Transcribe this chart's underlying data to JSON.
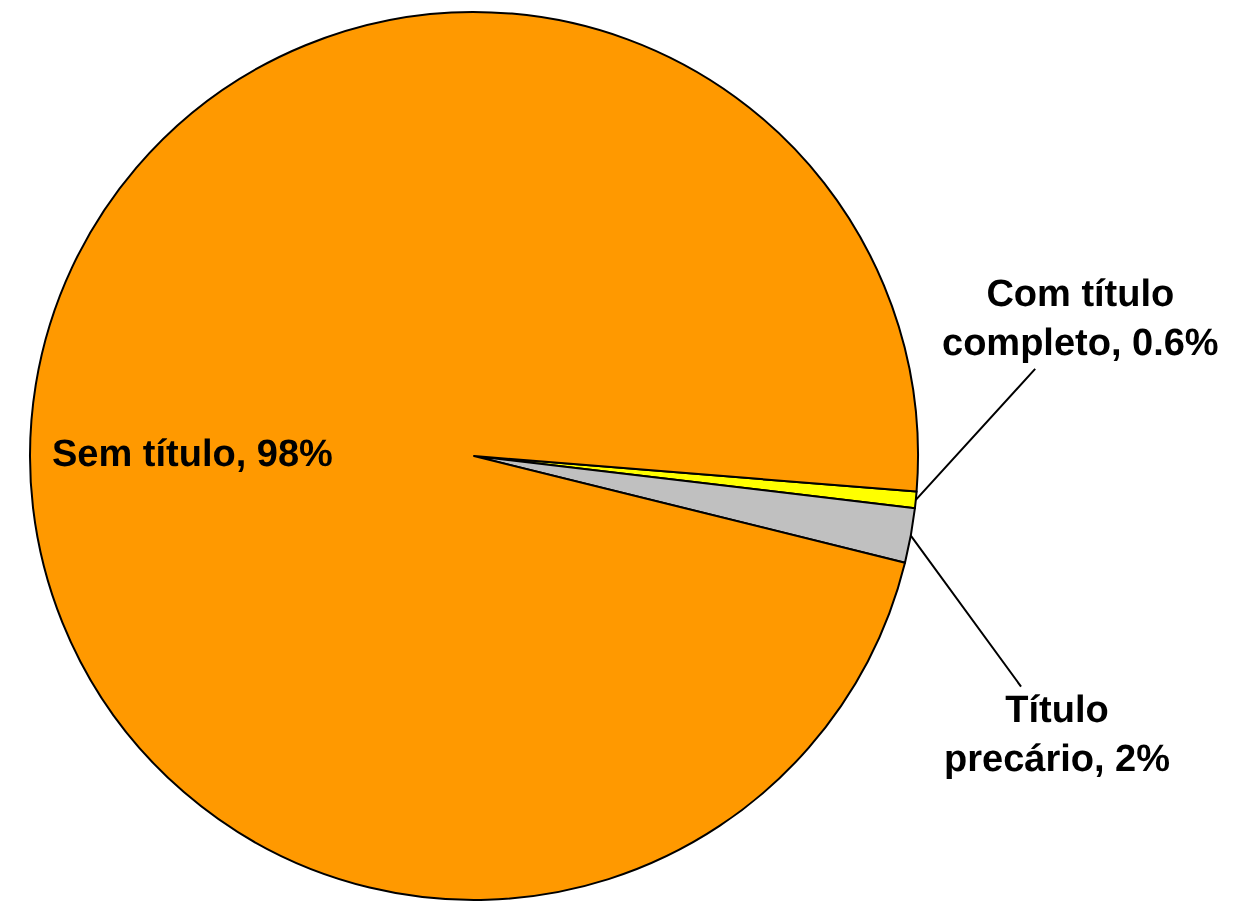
{
  "chart_data": {
    "type": "pie",
    "categories": [
      "Com título completo",
      "Título precário",
      "Sem título"
    ],
    "values": [
      0.6,
      2,
      98
    ],
    "colors": [
      "#ffff00",
      "#c0c0c0",
      "#ff9900"
    ],
    "value_labels": [
      "0.6%",
      "2%",
      "98%"
    ]
  }
}
